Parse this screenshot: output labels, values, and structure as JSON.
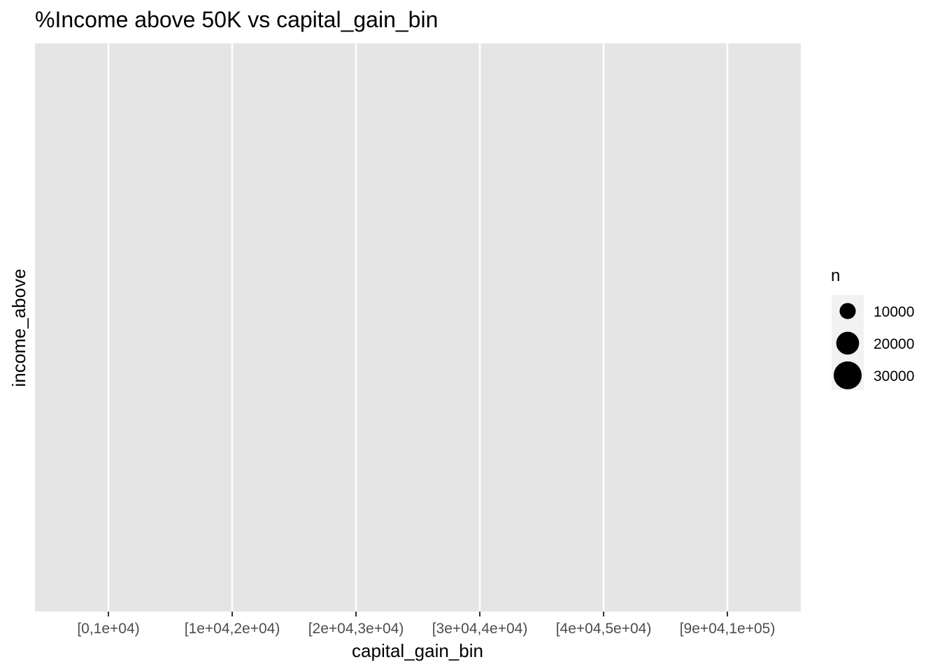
{
  "chart_data": {
    "type": "scatter",
    "title": "%Income above 50K vs capital_gain_bin",
    "xlabel": "capital_gain_bin",
    "ylabel": "income_above",
    "categories": [
      "[0,1e+04)",
      "[1e+04,2e+04)",
      "[2e+04,3e+04)",
      "[3e+04,4e+04)",
      "[4e+04,5e+04)",
      "[9e+04,1e+05)"
    ],
    "values": [],
    "grid": true,
    "legend": {
      "title": "n",
      "position": "right",
      "entries": [
        "10000",
        "20000",
        "30000"
      ],
      "sizes": [
        10000,
        20000,
        30000
      ]
    },
    "colors": {
      "panel": "#e5e5e5",
      "grid": "#ffffff",
      "point": "#000000",
      "tick_label": "#4d4d4d",
      "text": "#000000"
    }
  }
}
